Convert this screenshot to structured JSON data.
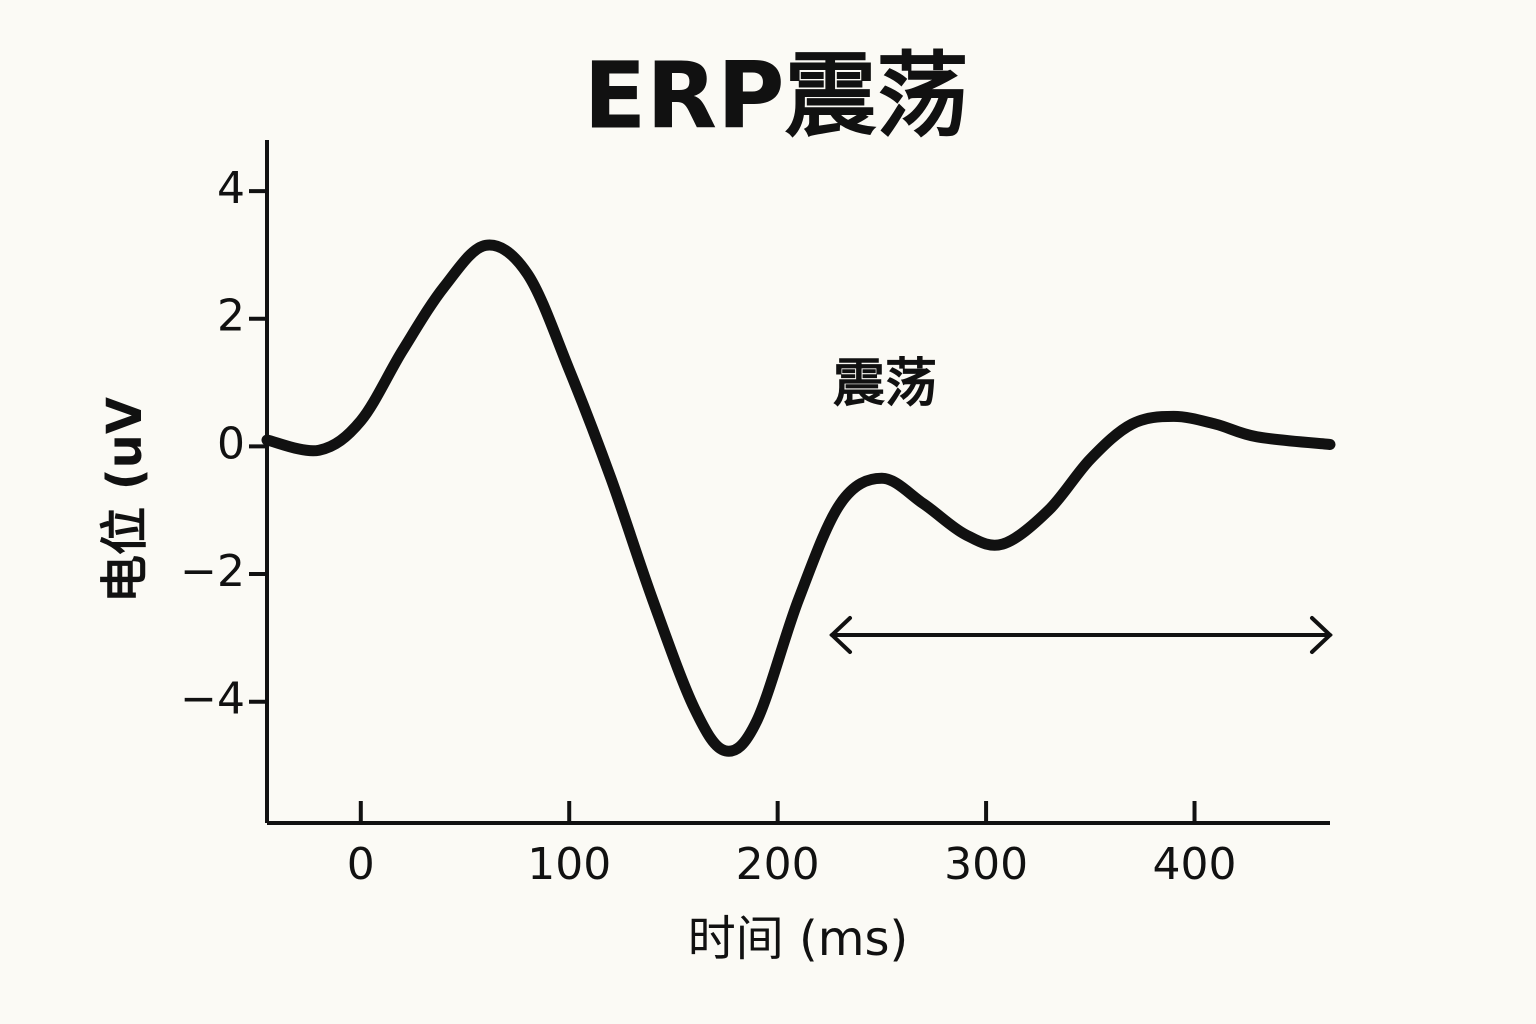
{
  "chart_data": {
    "type": "line",
    "title": "ERP震荡",
    "xlabel": "时间 (ms)",
    "ylabel": "电位 (uV",
    "annotation": "震荡",
    "x": [
      -45,
      -20,
      0,
      20,
      40,
      60,
      80,
      100,
      120,
      140,
      160,
      175,
      190,
      210,
      230,
      250,
      270,
      290,
      308,
      330,
      350,
      370,
      390,
      410,
      430,
      465
    ],
    "series": [
      {
        "color": "#111111",
        "values": [
          0.1,
          -0.06,
          0.4,
          1.5,
          2.5,
          3.15,
          2.7,
          1.2,
          -0.5,
          -2.4,
          -4.1,
          -4.77,
          -4.3,
          -2.4,
          -0.9,
          -0.5,
          -0.9,
          -1.38,
          -1.53,
          -1.0,
          -0.2,
          0.35,
          0.47,
          0.35,
          0.15,
          0.03
        ]
      }
    ],
    "xlim": [
      -45,
      465
    ],
    "xticks": [
      0,
      100,
      200,
      300,
      400
    ],
    "ylim": [
      -5.9,
      4.8
    ],
    "yticks": [
      {
        "value": -4,
        "label": "−4"
      },
      {
        "value": -2,
        "label": "−2"
      },
      0,
      2,
      4
    ]
  }
}
